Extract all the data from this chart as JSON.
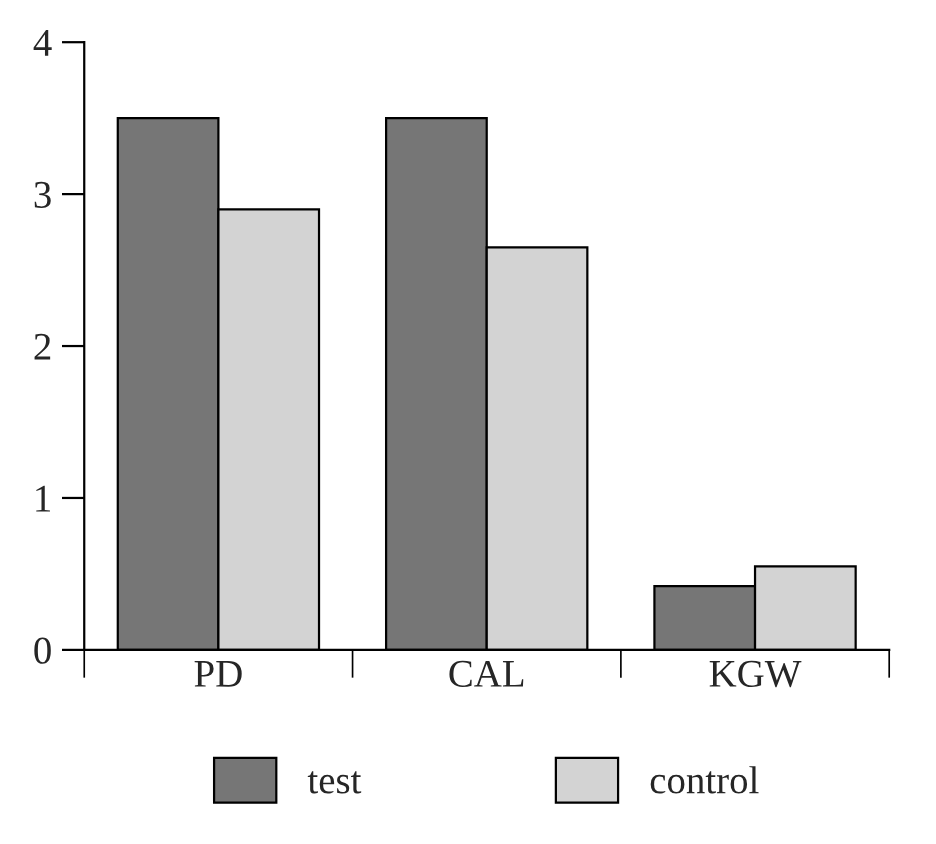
{
  "chart_data": {
    "type": "bar",
    "categories": [
      "PD",
      "CAL",
      "KGW"
    ],
    "series": [
      {
        "name": "test",
        "color": "#767676",
        "values": [
          3.5,
          3.5,
          0.42
        ]
      },
      {
        "name": "control",
        "color": "#d3d3d3",
        "values": [
          2.9,
          2.65,
          0.55
        ]
      }
    ],
    "ylim": [
      0,
      4
    ],
    "yticks": [
      0,
      1,
      2,
      3,
      4
    ],
    "grid": false,
    "legend": "bottom"
  }
}
